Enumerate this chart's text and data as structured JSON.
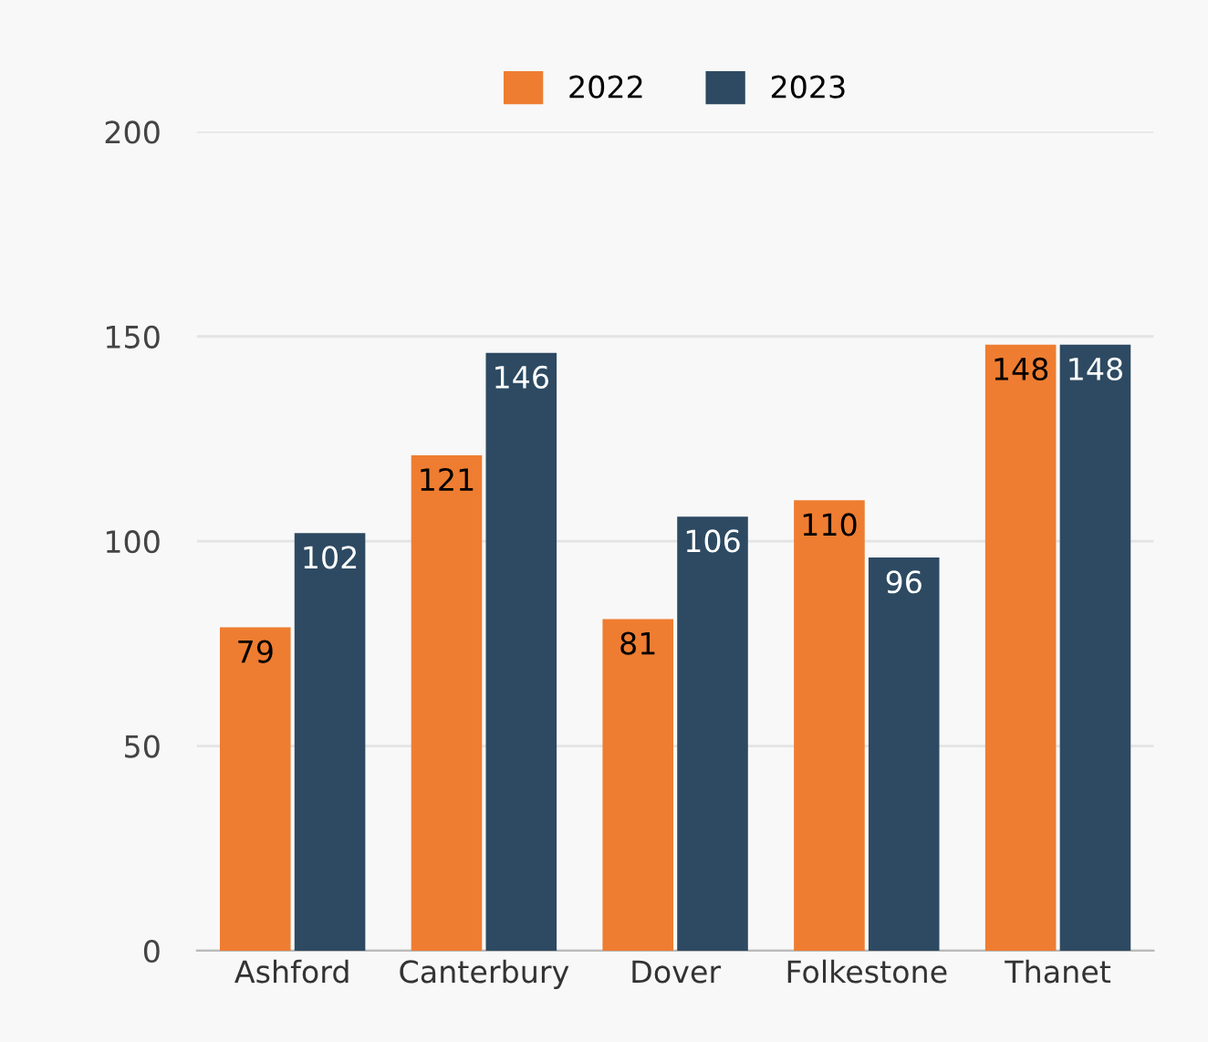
{
  "chart_data": {
    "type": "bar",
    "categories": [
      "Ashford",
      "Canterbury",
      "Dover",
      "Folkestone",
      "Thanet"
    ],
    "series": [
      {
        "name": "2022",
        "color": "#ee7d31",
        "values": [
          79,
          121,
          81,
          110,
          148
        ]
      },
      {
        "name": "2023",
        "color": "#2d4a62",
        "values": [
          102,
          146,
          106,
          96,
          148
        ]
      }
    ],
    "ylim": [
      0,
      200
    ],
    "yticks": [
      0,
      50,
      100,
      150,
      200
    ],
    "grid": "y",
    "legend": "top",
    "data_labels": true
  }
}
